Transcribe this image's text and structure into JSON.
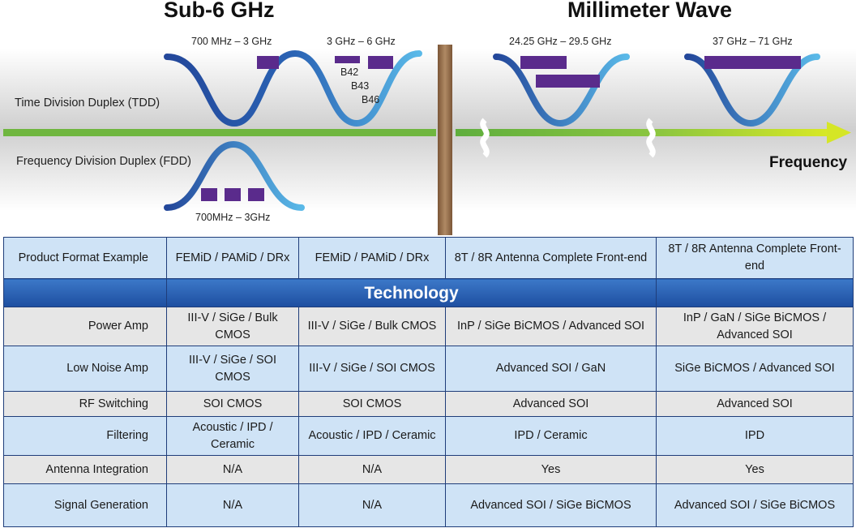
{
  "diagram": {
    "sub6_title": "Sub-6 GHz",
    "mmwave_title": "Millimeter Wave",
    "tdd_label": "Time Division Duplex (TDD)",
    "fdd_label": "Frequency Division Duplex (FDD)",
    "frequency_label": "Frequency",
    "ranges": {
      "sub6_low": "700 MHz – 3 GHz",
      "sub6_mid": "3 GHz – 6 GHz",
      "fdd": "700MHz – 3GHz",
      "mm_low": "24.25 GHz – 29.5 GHz",
      "mm_high": "37 GHz – 71 GHz"
    },
    "bands": [
      "B42",
      "B43",
      "B46"
    ],
    "colors": {
      "curve_dark": "#23479a",
      "curve_light": "#58b8e6",
      "band_block": "#5a2b8c",
      "axis_green": "#7cc043",
      "axis_yellow": "#cfe325",
      "divider": "#9a7251"
    }
  },
  "table": {
    "header": {
      "label": "Product Format Example",
      "cols": [
        "FEMiD / PAMiD / DRx",
        "FEMiD / PAMiD / DRx",
        "8T / 8R Antenna Complete Front-end",
        "8T / 8R Antenna Complete Front-end"
      ]
    },
    "technology_label": "Technology",
    "rows": [
      {
        "label": "Power Amp",
        "cols": [
          "III-V / SiGe / Bulk CMOS",
          "III-V / SiGe / Bulk CMOS",
          "InP / SiGe BiCMOS / Advanced SOI",
          "InP / GaN / SiGe BiCMOS / Advanced SOI"
        ]
      },
      {
        "label": "Low Noise Amp",
        "cols": [
          "III-V / SiGe / SOI CMOS",
          "III-V / SiGe / SOI CMOS",
          "Advanced SOI / GaN",
          "SiGe BiCMOS / Advanced SOI"
        ]
      },
      {
        "label": "RF Switching",
        "cols": [
          "SOI CMOS",
          "SOI CMOS",
          "Advanced SOI",
          "Advanced SOI"
        ]
      },
      {
        "label": "Filtering",
        "cols": [
          "Acoustic / IPD / Ceramic",
          "Acoustic / IPD / Ceramic",
          "IPD / Ceramic",
          "IPD"
        ]
      },
      {
        "label": "Antenna Integration",
        "cols": [
          "N/A",
          "N/A",
          "Yes",
          "Yes"
        ]
      },
      {
        "label": "Signal Generation",
        "cols": [
          "N/A",
          "N/A",
          "Advanced SOI / SiGe BiCMOS",
          "Advanced SOI / SiGe BiCMOS"
        ]
      }
    ]
  }
}
